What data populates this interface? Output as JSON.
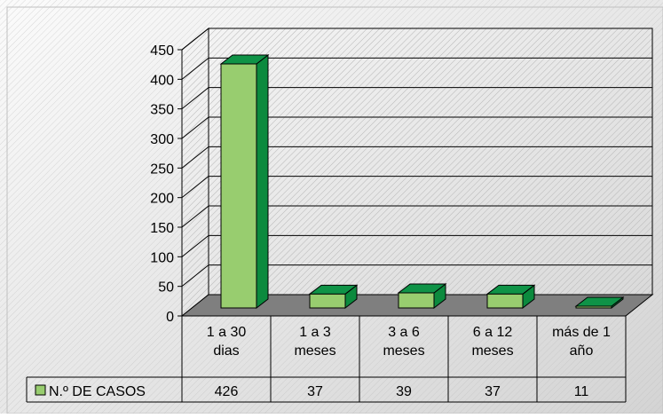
{
  "chart_data": {
    "type": "bar",
    "categories": [
      [
        "1 a 30",
        "dias"
      ],
      [
        "1 a 3",
        "meses"
      ],
      [
        "3 a 6",
        "meses"
      ],
      [
        "6 a 12",
        "meses"
      ],
      [
        "más de 1",
        "año"
      ]
    ],
    "series": [
      {
        "name": "N.º DE CASOS",
        "values": [
          426,
          37,
          39,
          37,
          11
        ]
      }
    ],
    "value_labels": [
      "426",
      "37",
      "39",
      "37",
      "11"
    ],
    "yticks": [
      "0",
      "50",
      "100",
      "150",
      "200",
      "250",
      "300",
      "350",
      "400",
      "450"
    ],
    "ylim": [
      0,
      450
    ],
    "grid": true,
    "legend": "data-table",
    "colors": {
      "bar_front": "#98cd6f",
      "bar_side": "#0c8a3e",
      "bar_top": "#0f9347",
      "bar_stroke": "#000000",
      "legend_swatch": "#98cd6f",
      "floor": "#7f7f7f",
      "background_light": "#f6f6f6",
      "background_dark": "#cfcfcf"
    }
  }
}
